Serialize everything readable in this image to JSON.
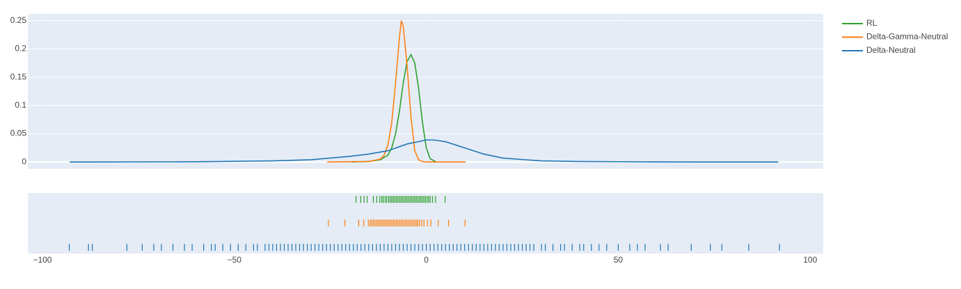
{
  "chart_data": {
    "type": "line",
    "xlim": [
      -103.8,
      103.4
    ],
    "ylim": [
      -0.012,
      0.262
    ],
    "xticks": [
      {
        "value": -100,
        "label": "−100"
      },
      {
        "value": -50,
        "label": "−50"
      },
      0,
      50,
      100
    ],
    "yticks": [
      0,
      0.05,
      0.1,
      0.15,
      0.2,
      0.25
    ],
    "grid": true,
    "legend": "right",
    "series": [
      {
        "name": "RL",
        "color": "#2ca02c",
        "x": [
          -19.5,
          -15,
          -12,
          -10,
          -9,
          -8,
          -7,
          -6,
          -5,
          -4,
          -3,
          -2,
          -1,
          0,
          1,
          2.6
        ],
        "values": [
          0,
          0.001,
          0.004,
          0.012,
          0.025,
          0.05,
          0.09,
          0.14,
          0.178,
          0.19,
          0.175,
          0.13,
          0.07,
          0.025,
          0.006,
          0
        ],
        "rug": [
          -18.3,
          -17.1,
          -16.2,
          -15.4,
          -13.8,
          -12.9,
          -12.1,
          -11.6,
          -11.2,
          -10.7,
          -10.3,
          -9.8,
          -9.4,
          -9.0,
          -8.6,
          -8.2,
          -7.8,
          -7.4,
          -7.0,
          -6.6,
          -6.2,
          -5.8,
          -5.4,
          -5.0,
          -4.6,
          -4.2,
          -3.8,
          -3.4,
          -3.0,
          -2.6,
          -2.2,
          -1.8,
          -1.4,
          -1.0,
          -0.6,
          -0.2,
          0.2,
          0.6,
          1.0,
          1.6,
          2.4,
          4.9
        ]
      },
      {
        "name": "Delta-Gamma-Neutral",
        "color": "#ff7f0e",
        "x": [
          -25.8,
          -15,
          -12,
          -11,
          -10,
          -9,
          -8,
          -7,
          -6.5,
          -6,
          -5,
          -4,
          -3,
          -2,
          -1,
          0,
          10.2
        ],
        "values": [
          0,
          0.001,
          0.005,
          0.012,
          0.03,
          0.07,
          0.14,
          0.22,
          0.25,
          0.24,
          0.17,
          0.08,
          0.02,
          0.004,
          0.001,
          0,
          0
        ],
        "rug": [
          -25.5,
          -21.2,
          -17.6,
          -16.3,
          -15.1,
          -14.6,
          -14.2,
          -13.8,
          -13.4,
          -13.0,
          -12.6,
          -12.2,
          -11.8,
          -11.4,
          -11.0,
          -10.6,
          -10.2,
          -9.8,
          -9.4,
          -9.0,
          -8.6,
          -8.2,
          -7.8,
          -7.4,
          -7.0,
          -6.6,
          -6.2,
          -5.8,
          -5.4,
          -5.0,
          -4.6,
          -4.2,
          -3.8,
          -3.4,
          -3.0,
          -2.6,
          -2.2,
          -1.8,
          -1.2,
          -0.6,
          0.3,
          1.2,
          3.1,
          5.8,
          10.1
        ]
      },
      {
        "name": "Delta-Neutral",
        "color": "#1f77b4",
        "x": [
          -92.9,
          -60,
          -40,
          -30,
          -20,
          -15,
          -10,
          -5,
          0,
          2,
          5,
          10,
          15,
          20,
          30,
          40,
          60,
          91.7
        ],
        "values": [
          0,
          0.0005,
          0.002,
          0.004,
          0.01,
          0.014,
          0.02,
          0.032,
          0.039,
          0.039,
          0.036,
          0.025,
          0.014,
          0.007,
          0.002,
          0.001,
          0.0002,
          0
        ],
        "rug": [
          -93,
          -88,
          -87,
          -78,
          -74,
          -71,
          -69,
          -66,
          -63,
          -61,
          -58,
          -56,
          -55,
          -53,
          -51,
          -49,
          -47,
          -45,
          -44,
          -42,
          -41,
          -40,
          -39,
          -38,
          -37,
          -36,
          -35,
          -34,
          -33,
          -32,
          -31,
          -30,
          -29,
          -28,
          -27,
          -26,
          -25,
          -24,
          -23,
          -22,
          -21,
          -20,
          -19,
          -18,
          -17,
          -16,
          -15,
          -14,
          -13,
          -12,
          -11,
          -10,
          -9,
          -8,
          -7,
          -6,
          -5,
          -4,
          -3,
          -2,
          -1,
          0,
          1,
          2,
          3,
          4,
          5,
          6,
          7,
          8,
          9,
          10,
          11,
          12,
          13,
          14,
          15,
          16,
          17,
          18,
          19,
          20,
          21,
          22,
          23,
          24,
          25,
          26,
          27,
          28,
          30,
          31,
          33,
          35,
          36,
          38,
          40,
          41,
          43,
          45,
          47,
          50,
          53,
          55,
          57,
          61,
          63,
          69,
          74,
          77,
          84,
          92
        ]
      }
    ]
  }
}
